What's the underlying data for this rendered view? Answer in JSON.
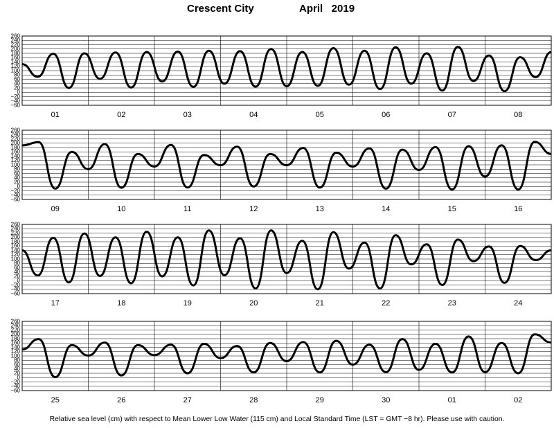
{
  "header": {
    "location": "Crescent City",
    "month_year": "April   2019"
  },
  "footer": {
    "note": "Relative sea level (cm) with respect to Mean Lower Low Water (115 cm) and Local Standard Time (LST = GMT −8 hr). Please use with caution."
  },
  "chart_data": [
    {
      "type": "line",
      "ylim": [
        -60,
        260
      ],
      "y_ticks": [
        "260",
        "240",
        "220",
        "200",
        "180",
        "160",
        "140",
        "120",
        "100",
        "80",
        "60",
        "40",
        "20",
        "0",
        "−20",
        "−40",
        "−60"
      ],
      "days": [
        "01",
        "02",
        "03",
        "04",
        "05",
        "06",
        "07",
        "08"
      ],
      "grid": true,
      "series": [
        {
          "values": [
            130,
            72,
            178,
            20,
            180,
            62,
            184,
            22,
            186,
            50,
            188,
            25,
            192,
            40,
            190,
            26,
            200,
            28,
            186,
            30,
            204,
            35,
            192,
            15,
            208,
            40,
            180,
            8,
            210,
            52,
            170,
            5,
            162,
            70,
            186
          ]
        }
      ]
    },
    {
      "type": "line",
      "ylim": [
        -60,
        260
      ],
      "y_ticks": [
        "260",
        "240",
        "220",
        "200",
        "180",
        "160",
        "140",
        "120",
        "100",
        "80",
        "60",
        "40",
        "20",
        "0",
        "−20",
        "−40",
        "−60"
      ],
      "days": [
        "09",
        "10",
        "11",
        "12",
        "13",
        "14",
        "15",
        "16"
      ],
      "grid": true,
      "series": [
        {
          "values": [
            190,
            205,
            -10,
            160,
            80,
            196,
            -6,
            150,
            92,
            192,
            -5,
            145,
            98,
            184,
            0,
            150,
            98,
            178,
            -5,
            156,
            92,
            176,
            -10,
            170,
            76,
            182,
            -14,
            186,
            46,
            190,
            -14,
            206,
            150
          ]
        }
      ]
    },
    {
      "type": "line",
      "ylim": [
        -60,
        260
      ],
      "y_ticks": [
        "260",
        "240",
        "220",
        "200",
        "180",
        "160",
        "140",
        "120",
        "100",
        "80",
        "60",
        "40",
        "20",
        "0",
        "−20",
        "−40",
        "−60"
      ],
      "days": [
        "17",
        "18",
        "19",
        "20",
        "21",
        "22",
        "23",
        "24"
      ],
      "grid": true,
      "series": [
        {
          "values": [
            140,
            24,
            198,
            -8,
            218,
            22,
            200,
            -12,
            226,
            20,
            200,
            -22,
            232,
            25,
            196,
            -36,
            232,
            35,
            184,
            -40,
            224,
            56,
            176,
            -36,
            210,
            75,
            168,
            -20,
            190,
            90,
            158,
            -10,
            160,
            95,
            140
          ]
        }
      ]
    },
    {
      "type": "line",
      "ylim": [
        -60,
        260
      ],
      "y_ticks": [
        "260",
        "240",
        "220",
        "200",
        "180",
        "160",
        "140",
        "120",
        "100",
        "80",
        "60",
        "40",
        "20",
        "0",
        "−20",
        "−40",
        "−60"
      ],
      "days": [
        "25",
        "26",
        "27",
        "28",
        "29",
        "30",
        "01",
        "02"
      ],
      "grid": true,
      "series": [
        {
          "values": [
            130,
            178,
            2,
            150,
            102,
            162,
            10,
            150,
            104,
            152,
            20,
            156,
            90,
            146,
            24,
            160,
            76,
            164,
            24,
            170,
            60,
            152,
            25,
            178,
            36,
            156,
            24,
            190,
            25,
            160,
            20,
            200,
            162
          ]
        }
      ]
    }
  ]
}
